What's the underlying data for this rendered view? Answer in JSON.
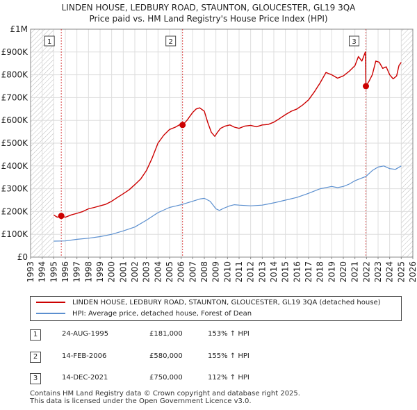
{
  "title_line1": "LINDEN HOUSE, LEDBURY ROAD, STAUNTON, GLOUCESTER, GL19 3QA",
  "title_line2": "Price paid vs. HM Land Registry's House Price Index (HPI)",
  "chart_data": {
    "type": "line",
    "ylim": [
      0,
      1000000
    ],
    "xlim": [
      1993,
      2026
    ],
    "y_ticks": [
      0,
      100000,
      200000,
      300000,
      400000,
      500000,
      600000,
      700000,
      800000,
      900000,
      1000000
    ],
    "y_tick_labels": [
      "£0",
      "£100K",
      "£200K",
      "£300K",
      "£400K",
      "£500K",
      "£600K",
      "£700K",
      "£800K",
      "£900K",
      "£1M"
    ],
    "x_ticks": [
      1993,
      1994,
      1995,
      1996,
      1997,
      1998,
      1999,
      2000,
      2001,
      2002,
      2003,
      2004,
      2005,
      2006,
      2007,
      2008,
      2009,
      2010,
      2011,
      2012,
      2013,
      2014,
      2015,
      2016,
      2017,
      2018,
      2019,
      2020,
      2021,
      2022,
      2023,
      2024,
      2025,
      2026
    ],
    "x_tick_labels": [
      "1993",
      "1994",
      "1995",
      "1996",
      "1997",
      "1998",
      "1999",
      "2000",
      "2001",
      "2002",
      "2003",
      "2004",
      "2005",
      "2006",
      "2007",
      "2008",
      "2009",
      "2010",
      "2011",
      "2012",
      "2013",
      "2014",
      "2015",
      "2016",
      "2017",
      "2018",
      "2019",
      "2020",
      "2021",
      "2022",
      "2023",
      "2024",
      "2025",
      "2026"
    ],
    "hatch_before": 1995.0,
    "hatch_after": 2025.0,
    "series": [
      {
        "name": "LINDEN HOUSE, LEDBURY ROAD, STAUNTON, GLOUCESTER, GL19 3QA (detached house)",
        "color": "#cc0000",
        "x": [
          1995.0,
          1995.3,
          1995.65,
          1996.0,
          1996.5,
          1997.0,
          1997.5,
          1998.0,
          1998.5,
          1999.0,
          1999.5,
          2000.0,
          2000.5,
          2001.0,
          2001.5,
          2002.0,
          2002.5,
          2003.0,
          2003.5,
          2004.0,
          2004.5,
          2005.0,
          2005.5,
          2006.0,
          2006.12,
          2006.5,
          2007.0,
          2007.3,
          2007.6,
          2008.0,
          2008.3,
          2008.6,
          2008.9,
          2009.1,
          2009.4,
          2009.8,
          2010.2,
          2010.6,
          2011.0,
          2011.5,
          2012.0,
          2012.5,
          2013.0,
          2013.5,
          2014.0,
          2014.5,
          2015.0,
          2015.5,
          2016.0,
          2016.5,
          2017.0,
          2017.5,
          2018.0,
          2018.5,
          2019.0,
          2019.5,
          2020.0,
          2020.5,
          2021.0,
          2021.3,
          2021.6,
          2021.9,
          2021.95,
          2022.2,
          2022.5,
          2022.8,
          2023.1,
          2023.4,
          2023.7,
          2024.0,
          2024.3,
          2024.6,
          2024.8,
          2025.0
        ],
        "values": [
          185000,
          175000,
          181000,
          175000,
          185000,
          192000,
          200000,
          212000,
          218000,
          225000,
          232000,
          245000,
          262000,
          278000,
          295000,
          318000,
          342000,
          380000,
          435000,
          500000,
          535000,
          560000,
          570000,
          585000,
          580000,
          600000,
          635000,
          650000,
          655000,
          640000,
          590000,
          548000,
          530000,
          545000,
          565000,
          575000,
          580000,
          570000,
          565000,
          575000,
          578000,
          572000,
          580000,
          582000,
          592000,
          608000,
          625000,
          640000,
          650000,
          668000,
          690000,
          725000,
          765000,
          810000,
          800000,
          785000,
          795000,
          815000,
          840000,
          880000,
          860000,
          900000,
          750000,
          770000,
          800000,
          860000,
          855000,
          828000,
          835000,
          800000,
          782000,
          795000,
          840000,
          855000
        ]
      },
      {
        "name": "HPI: Average price, detached house, Forest of Dean",
        "color": "#5b8fcf",
        "x": [
          1995.0,
          1996.0,
          1997.0,
          1998.0,
          1999.0,
          2000.0,
          2001.0,
          2002.0,
          2003.0,
          2004.0,
          2005.0,
          2006.0,
          2007.0,
          2007.6,
          2008.0,
          2008.5,
          2009.0,
          2009.3,
          2009.7,
          2010.2,
          2010.6,
          2011.0,
          2012.0,
          2013.0,
          2014.0,
          2015.0,
          2016.0,
          2017.0,
          2018.0,
          2019.0,
          2019.5,
          2020.0,
          2020.5,
          2021.0,
          2021.5,
          2021.95,
          2022.5,
          2023.0,
          2023.5,
          2024.0,
          2024.5,
          2025.0
        ],
        "values": [
          70000,
          71000,
          78000,
          83000,
          90000,
          100000,
          115000,
          132000,
          162000,
          195000,
          218000,
          230000,
          245000,
          255000,
          258000,
          245000,
          212000,
          205000,
          215000,
          225000,
          230000,
          228000,
          225000,
          228000,
          238000,
          250000,
          262000,
          280000,
          300000,
          310000,
          305000,
          310000,
          320000,
          335000,
          345000,
          354000,
          380000,
          395000,
          400000,
          388000,
          385000,
          400000
        ]
      }
    ],
    "sale_markers": [
      {
        "label": "1",
        "x": 1995.65,
        "value": 181000
      },
      {
        "label": "2",
        "x": 2006.12,
        "value": 580000
      },
      {
        "label": "3",
        "x": 2021.95,
        "value": 750000
      }
    ]
  },
  "legend": {
    "red_label": "LINDEN HOUSE, LEDBURY ROAD, STAUNTON, GLOUCESTER, GL19 3QA (detached house)",
    "blue_label": "HPI: Average price, detached house, Forest of Dean",
    "red_color": "#cc0000",
    "blue_color": "#5b8fcf"
  },
  "sales": [
    {
      "num": "1",
      "date": "24-AUG-1995",
      "price": "£181,000",
      "hpi": "153% ↑ HPI"
    },
    {
      "num": "2",
      "date": "14-FEB-2006",
      "price": "£580,000",
      "hpi": "155% ↑ HPI"
    },
    {
      "num": "3",
      "date": "14-DEC-2021",
      "price": "£750,000",
      "hpi": "112% ↑ HPI"
    }
  ],
  "footer_line1": "Contains HM Land Registry data © Crown copyright and database right 2025.",
  "footer_line2": "This data is licensed under the Open Government Licence v3.0."
}
